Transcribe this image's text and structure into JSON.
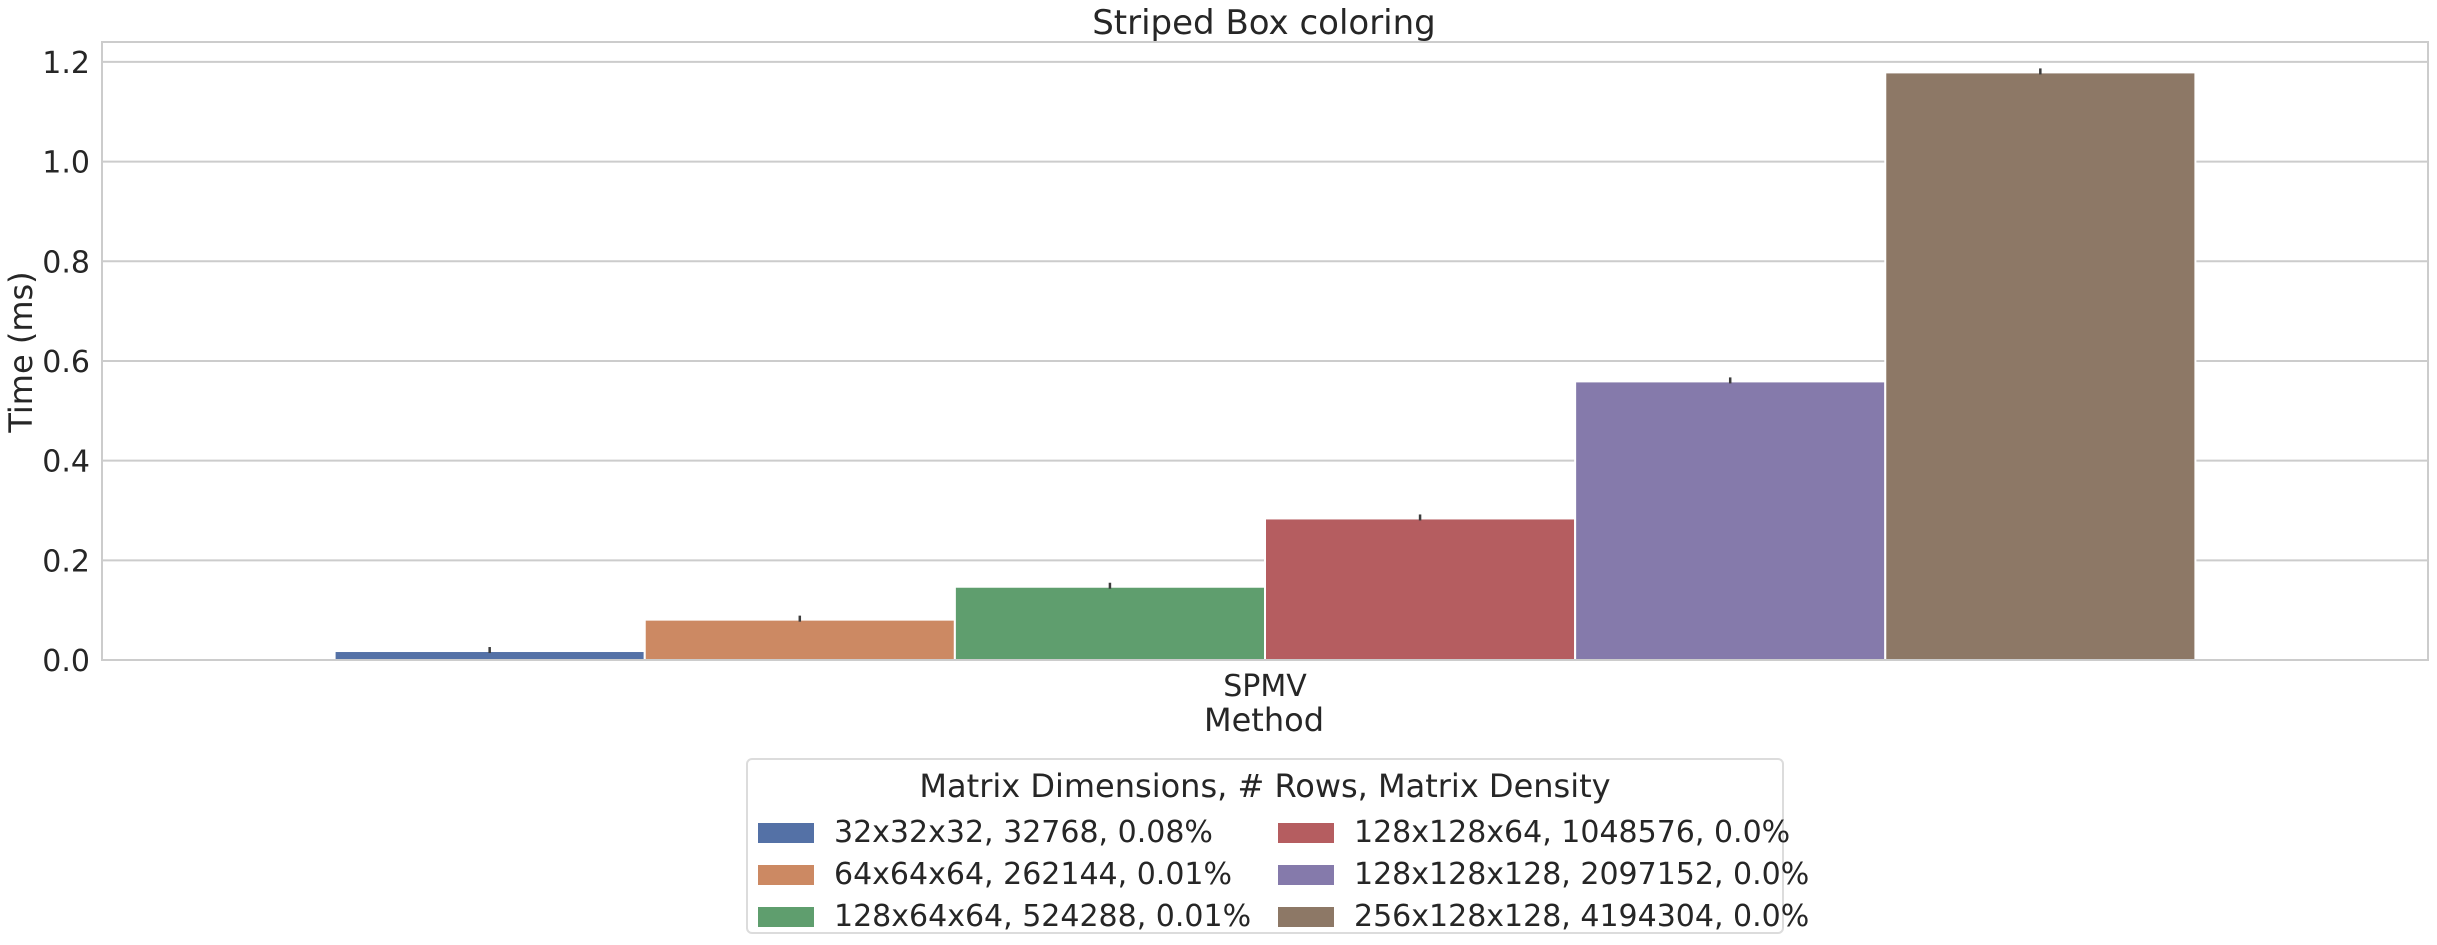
{
  "chart_data": {
    "type": "bar",
    "title": "Striped Box coloring",
    "xlabel": "Method",
    "ylabel": "Time (ms)",
    "categories": [
      "SPMV"
    ],
    "ylim": [
      0,
      1.24
    ],
    "yticks": [
      "0.0",
      "0.2",
      "0.4",
      "0.6",
      "0.8",
      "1.0",
      "1.2"
    ],
    "grid": true,
    "legend_title": "Matrix Dimensions, # Rows, Matrix Density",
    "legend_position": "bottom-center",
    "series": [
      {
        "name": "32x32x32, 32768, 0.08%",
        "values": [
          0.018
        ],
        "color": "#5471a6"
      },
      {
        "name": "64x64x64, 262144, 0.01%",
        "values": [
          0.081
        ],
        "color": "#cc8963"
      },
      {
        "name": "128x64x64, 524288, 0.01%",
        "values": [
          0.147
        ],
        "color": "#5f9e6e"
      },
      {
        "name": "128x128x64, 1048576, 0.0%",
        "values": [
          0.284
        ],
        "color": "#b55d60"
      },
      {
        "name": "128x128x128, 2097152, 0.0%",
        "values": [
          0.559
        ],
        "color": "#857aab"
      },
      {
        "name": "256x128x128, 4194304, 0.0%",
        "values": [
          1.179
        ],
        "color": "#8d7866"
      }
    ]
  }
}
